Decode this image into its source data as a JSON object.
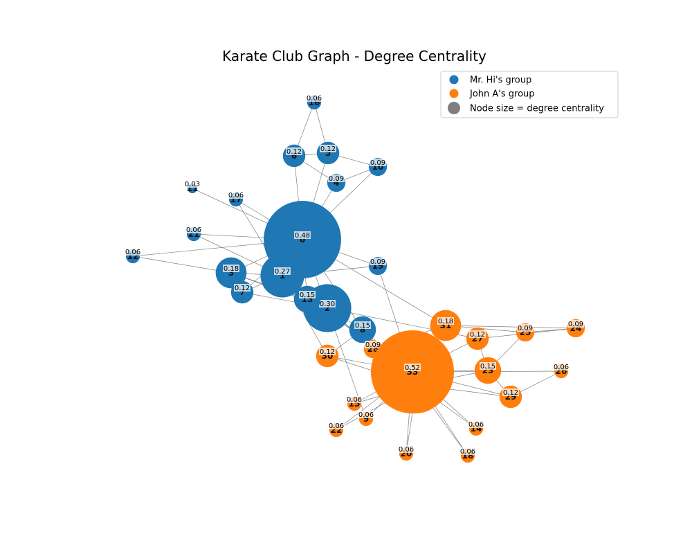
{
  "title": "Karate Club Graph - Degree Centrality",
  "colors": {
    "mr_hi": "#1f77b4",
    "john_a": "#ff7f0e",
    "size_marker": "#7f7f7f",
    "edge": "#808080"
  },
  "legend": {
    "placement": "top-right",
    "items": [
      {
        "label": "Mr. Hi's group",
        "color": "#1f77b4"
      },
      {
        "label": "John A's group",
        "color": "#ff7f0e"
      },
      {
        "label": "Node size = degree centrality",
        "color": "#7f7f7f"
      }
    ]
  },
  "nodes": [
    {
      "id": "0",
      "group": "mr_hi",
      "centrality": "0.48"
    },
    {
      "id": "1",
      "group": "mr_hi",
      "centrality": "0.27"
    },
    {
      "id": "2",
      "group": "mr_hi",
      "centrality": "0.30"
    },
    {
      "id": "3",
      "group": "mr_hi",
      "centrality": "0.18"
    },
    {
      "id": "4",
      "group": "mr_hi",
      "centrality": "0.09"
    },
    {
      "id": "5",
      "group": "mr_hi",
      "centrality": "0.12"
    },
    {
      "id": "6",
      "group": "mr_hi",
      "centrality": "0.12"
    },
    {
      "id": "7",
      "group": "mr_hi",
      "centrality": "0.12"
    },
    {
      "id": "8",
      "group": "mr_hi",
      "centrality": "0.15"
    },
    {
      "id": "9",
      "group": "john_a",
      "centrality": "0.06"
    },
    {
      "id": "10",
      "group": "mr_hi",
      "centrality": "0.09"
    },
    {
      "id": "11",
      "group": "mr_hi",
      "centrality": "0.03"
    },
    {
      "id": "12",
      "group": "mr_hi",
      "centrality": "0.06"
    },
    {
      "id": "13",
      "group": "mr_hi",
      "centrality": "0.15"
    },
    {
      "id": "14",
      "group": "john_a",
      "centrality": "0.06"
    },
    {
      "id": "15",
      "group": "john_a",
      "centrality": "0.06"
    },
    {
      "id": "16",
      "group": "mr_hi",
      "centrality": "0.06"
    },
    {
      "id": "17",
      "group": "mr_hi",
      "centrality": "0.06"
    },
    {
      "id": "18",
      "group": "john_a",
      "centrality": "0.06"
    },
    {
      "id": "19",
      "group": "mr_hi",
      "centrality": "0.09"
    },
    {
      "id": "20",
      "group": "john_a",
      "centrality": "0.06"
    },
    {
      "id": "21",
      "group": "mr_hi",
      "centrality": "0.06"
    },
    {
      "id": "22",
      "group": "john_a",
      "centrality": "0.06"
    },
    {
      "id": "23",
      "group": "john_a",
      "centrality": "0.15"
    },
    {
      "id": "24",
      "group": "john_a",
      "centrality": "0.09"
    },
    {
      "id": "25",
      "group": "john_a",
      "centrality": "0.09"
    },
    {
      "id": "26",
      "group": "john_a",
      "centrality": "0.06"
    },
    {
      "id": "27",
      "group": "john_a",
      "centrality": "0.12"
    },
    {
      "id": "28",
      "group": "john_a",
      "centrality": "0.09"
    },
    {
      "id": "29",
      "group": "john_a",
      "centrality": "0.12"
    },
    {
      "id": "30",
      "group": "john_a",
      "centrality": "0.12"
    },
    {
      "id": "31",
      "group": "john_a",
      "centrality": "0.18"
    },
    {
      "id": "32",
      "group": "john_a",
      "centrality": "0.36"
    },
    {
      "id": "33",
      "group": "john_a",
      "centrality": "0.52"
    }
  ],
  "edges": [
    [
      "0",
      "1"
    ],
    [
      "0",
      "2"
    ],
    [
      "0",
      "3"
    ],
    [
      "0",
      "4"
    ],
    [
      "0",
      "5"
    ],
    [
      "0",
      "6"
    ],
    [
      "0",
      "7"
    ],
    [
      "0",
      "8"
    ],
    [
      "0",
      "10"
    ],
    [
      "0",
      "11"
    ],
    [
      "0",
      "12"
    ],
    [
      "0",
      "13"
    ],
    [
      "0",
      "17"
    ],
    [
      "0",
      "19"
    ],
    [
      "0",
      "21"
    ],
    [
      "0",
      "31"
    ],
    [
      "1",
      "2"
    ],
    [
      "1",
      "3"
    ],
    [
      "1",
      "7"
    ],
    [
      "1",
      "13"
    ],
    [
      "1",
      "17"
    ],
    [
      "1",
      "19"
    ],
    [
      "1",
      "21"
    ],
    [
      "1",
      "30"
    ],
    [
      "2",
      "3"
    ],
    [
      "2",
      "7"
    ],
    [
      "2",
      "8"
    ],
    [
      "2",
      "9"
    ],
    [
      "2",
      "13"
    ],
    [
      "2",
      "27"
    ],
    [
      "2",
      "28"
    ],
    [
      "2",
      "32"
    ],
    [
      "3",
      "7"
    ],
    [
      "3",
      "12"
    ],
    [
      "3",
      "13"
    ],
    [
      "4",
      "6"
    ],
    [
      "4",
      "10"
    ],
    [
      "5",
      "6"
    ],
    [
      "5",
      "10"
    ],
    [
      "5",
      "16"
    ],
    [
      "6",
      "16"
    ],
    [
      "8",
      "30"
    ],
    [
      "8",
      "32"
    ],
    [
      "8",
      "33"
    ],
    [
      "9",
      "33"
    ],
    [
      "13",
      "33"
    ],
    [
      "14",
      "32"
    ],
    [
      "14",
      "33"
    ],
    [
      "15",
      "32"
    ],
    [
      "15",
      "33"
    ],
    [
      "18",
      "32"
    ],
    [
      "18",
      "33"
    ],
    [
      "19",
      "33"
    ],
    [
      "20",
      "32"
    ],
    [
      "20",
      "33"
    ],
    [
      "22",
      "32"
    ],
    [
      "22",
      "33"
    ],
    [
      "23",
      "25"
    ],
    [
      "23",
      "27"
    ],
    [
      "23",
      "29"
    ],
    [
      "23",
      "32"
    ],
    [
      "23",
      "33"
    ],
    [
      "24",
      "25"
    ],
    [
      "24",
      "27"
    ],
    [
      "24",
      "31"
    ],
    [
      "25",
      "31"
    ],
    [
      "26",
      "29"
    ],
    [
      "26",
      "33"
    ],
    [
      "27",
      "33"
    ],
    [
      "28",
      "31"
    ],
    [
      "28",
      "33"
    ],
    [
      "29",
      "32"
    ],
    [
      "29",
      "33"
    ],
    [
      "30",
      "32"
    ],
    [
      "30",
      "33"
    ],
    [
      "31",
      "32"
    ],
    [
      "31",
      "33"
    ],
    [
      "32",
      "33"
    ]
  ]
}
